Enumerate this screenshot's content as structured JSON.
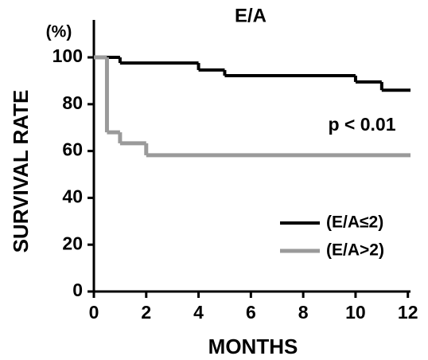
{
  "chart_data": {
    "type": "line",
    "step": "post",
    "title": "E/A",
    "y_unit": "(%)",
    "ylabel": "SURVIVAL RATE",
    "xlabel": "MONTHS",
    "annotation": "p < 0.01",
    "xlim": [
      0,
      12.1
    ],
    "ylim": [
      0,
      116
    ],
    "xticks": [
      0,
      2,
      4,
      6,
      8,
      10,
      12
    ],
    "yticks": [
      0,
      20,
      40,
      60,
      80,
      100
    ],
    "legend": "lower right",
    "series": [
      {
        "name": "(E/A≤2)",
        "color": "#000000",
        "x": [
          0,
          1,
          4,
          5,
          10,
          11,
          12.1
        ],
        "values": [
          100,
          97.6,
          94.6,
          92.2,
          89.5,
          86,
          86
        ]
      },
      {
        "name": "(E/A>2)",
        "color": "#9a9a9a",
        "x": [
          0,
          0.5,
          1,
          2,
          12.1
        ],
        "values": [
          100,
          68,
          63.3,
          58.2,
          58.2
        ]
      }
    ]
  }
}
